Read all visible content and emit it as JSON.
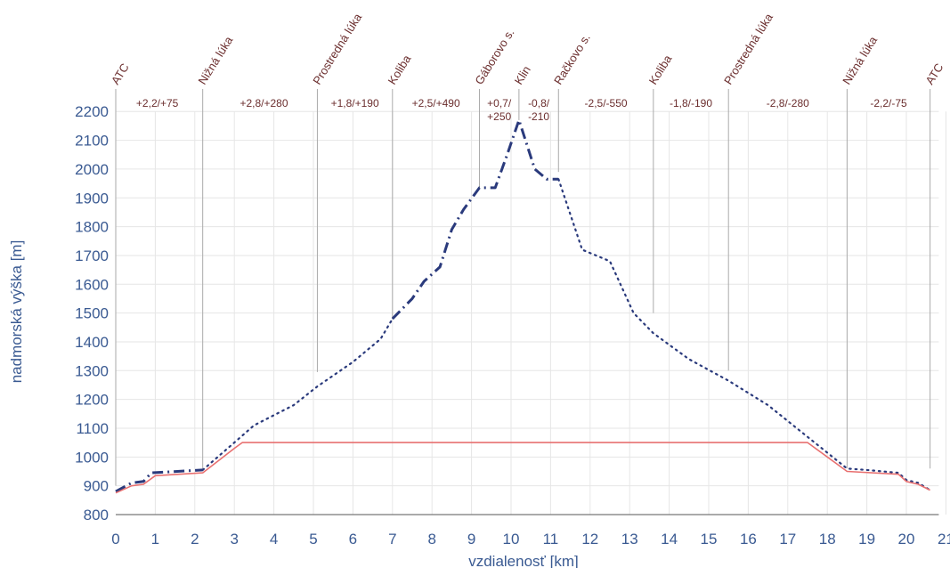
{
  "chart_data": {
    "type": "line",
    "xlabel": "vzdialenosť [km]",
    "ylabel": "nadmorská výška [m]",
    "xlim": [
      0,
      21
    ],
    "ylim": [
      800,
      2200
    ],
    "x_ticks": [
      0,
      1,
      2,
      3,
      4,
      5,
      6,
      7,
      8,
      9,
      10,
      11,
      12,
      13,
      14,
      15,
      16,
      17,
      18,
      19,
      20,
      21
    ],
    "y_ticks": [
      800,
      900,
      1000,
      1100,
      1200,
      1300,
      1400,
      1500,
      1600,
      1700,
      1800,
      1900,
      2000,
      2100,
      2200
    ],
    "grid": true,
    "waypoints": [
      {
        "name": "ATC",
        "x": 0,
        "line_to": 900
      },
      {
        "name": "Nižná lúka",
        "x": 2.2,
        "line_to": 955
      },
      {
        "name": "Prostredná lúka",
        "x": 5.1,
        "line_to": 1295
      },
      {
        "name": "Koliba",
        "x": 7.0,
        "line_to": 1480
      },
      {
        "name": "Gáborovo s.",
        "x": 9.2,
        "line_to": 1930
      },
      {
        "name": "Klin",
        "x": 10.2,
        "line_to": 2170
      },
      {
        "name": "Račkovo s.",
        "x": 11.2,
        "line_to": 1990
      },
      {
        "name": "Koliba",
        "x": 13.6,
        "line_to": 1500
      },
      {
        "name": "Prostredná lúka",
        "x": 15.5,
        "line_to": 1300
      },
      {
        "name": "Nižná lúka",
        "x": 18.5,
        "line_to": 960
      },
      {
        "name": "ATC",
        "x": 20.6,
        "line_to": 960
      }
    ],
    "segments": [
      {
        "label": "+2,2/+75",
        "x": 1.05
      },
      {
        "label": "+2,8/+280",
        "x": 3.75
      },
      {
        "label": "+1,8/+190",
        "x": 6.05
      },
      {
        "label": "+2,5/+490",
        "x": 8.1
      },
      {
        "label": "+0,7/",
        "label2": "+250",
        "x": 9.7
      },
      {
        "label": "-0,8/",
        "label2": "-210",
        "x": 10.7
      },
      {
        "label": "-2,5/-550",
        "x": 12.4
      },
      {
        "label": "-1,8/-190",
        "x": 14.55
      },
      {
        "label": "-2,8/-280",
        "x": 17.0
      },
      {
        "label": "-2,2/-75",
        "x": 19.55
      }
    ],
    "series": [
      {
        "style": "dash-dot",
        "color": "#2a3a7c",
        "x": [
          0,
          0.4,
          0.7,
          0.9,
          2.2
        ],
        "y": [
          880,
          910,
          915,
          945,
          955
        ]
      },
      {
        "style": "dotted",
        "color": "#2a3a7c",
        "x": [
          2.2,
          3.0,
          3.5,
          4.5,
          5.1,
          6.0,
          6.7,
          7.0
        ],
        "y": [
          955,
          1050,
          1110,
          1180,
          1245,
          1330,
          1410,
          1480
        ]
      },
      {
        "style": "dash-dot",
        "color": "#2a3a7c",
        "x": [
          7.0,
          7.5,
          7.8,
          8.2,
          8.5,
          8.8,
          9.2,
          9.3,
          9.6,
          9.9,
          10.2,
          10.6,
          10.9,
          11.2
        ],
        "y": [
          1480,
          1550,
          1610,
          1660,
          1790,
          1860,
          1935,
          1935,
          1935,
          2050,
          2170,
          2000,
          1965,
          1965
        ]
      },
      {
        "style": "dotted",
        "color": "#2a3a7c",
        "x": [
          11.2,
          11.8,
          12.5,
          13.1,
          13.6,
          14.5,
          15.5,
          16.5,
          17.5,
          18.5,
          19.0,
          19.8,
          20.0,
          20.3,
          20.6
        ],
        "y": [
          1965,
          1720,
          1680,
          1500,
          1430,
          1340,
          1265,
          1180,
          1070,
          960,
          955,
          945,
          920,
          910,
          885
        ]
      },
      {
        "style": "solid",
        "color": "#e87070",
        "x": [
          0,
          0.4,
          0.7,
          1.0,
          2.2,
          3.0,
          3.2,
          17.5,
          18.5,
          19.8,
          20.0,
          20.3,
          20.6
        ],
        "y": [
          875,
          900,
          905,
          935,
          945,
          1030,
          1050,
          1050,
          950,
          940,
          915,
          905,
          885
        ]
      }
    ]
  }
}
